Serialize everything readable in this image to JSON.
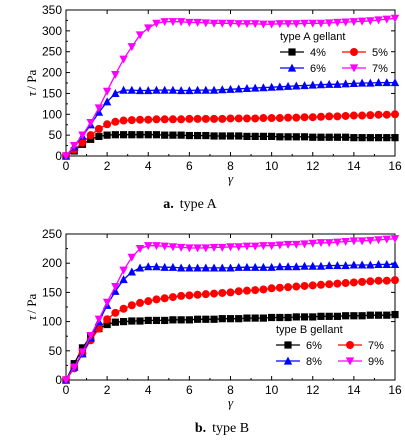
{
  "chart_data": [
    {
      "type": "line",
      "caption_letter": "a.",
      "caption_text": "type A",
      "ylabel_symbol": "τ",
      "ylabel_unit": "/ Pa",
      "xlabel": "γ",
      "xlim": [
        0,
        16
      ],
      "ylim": [
        0,
        350
      ],
      "xticks": [
        0,
        2,
        4,
        6,
        8,
        10,
        12,
        14,
        16
      ],
      "yticks": [
        0,
        50,
        100,
        150,
        200,
        250,
        300,
        350
      ],
      "legend_title": "type A gellant",
      "legend_position": "top-right",
      "x": [
        0,
        0.4,
        0.8,
        1.2,
        1.6,
        2.0,
        2.4,
        2.8,
        3.2,
        3.6,
        4.0,
        4.4,
        4.8,
        5.2,
        5.6,
        6.0,
        6.4,
        6.8,
        7.2,
        7.6,
        8.0,
        8.4,
        8.8,
        9.2,
        9.6,
        10.0,
        10.4,
        10.8,
        11.2,
        11.6,
        12.0,
        12.4,
        12.8,
        13.2,
        13.6,
        14.0,
        14.4,
        14.8,
        15.2,
        15.6,
        16.0
      ],
      "series": [
        {
          "name": "4%",
          "color": "#000000",
          "marker": "square",
          "values": [
            0,
            12,
            28,
            40,
            47,
            50,
            51,
            51,
            51,
            51,
            51,
            51,
            50,
            50,
            50,
            49,
            49,
            49,
            48,
            48,
            48,
            48,
            47,
            47,
            47,
            47,
            46,
            46,
            46,
            46,
            45,
            45,
            45,
            45,
            45,
            44,
            44,
            44,
            44,
            44,
            44
          ]
        },
        {
          "name": "5%",
          "color": "#ff0000",
          "marker": "circle",
          "values": [
            0,
            15,
            32,
            50,
            65,
            76,
            82,
            85,
            86,
            87,
            87,
            88,
            88,
            88,
            88,
            89,
            89,
            89,
            89,
            89,
            90,
            90,
            90,
            90,
            91,
            91,
            91,
            92,
            92,
            93,
            93,
            94,
            95,
            95,
            96,
            97,
            97,
            98,
            99,
            99,
            100
          ]
        },
        {
          "name": "6%",
          "color": "#0000ff",
          "marker": "triangle-up",
          "values": [
            0,
            22,
            48,
            75,
            105,
            130,
            150,
            158,
            158,
            157,
            157,
            158,
            158,
            158,
            157,
            157,
            158,
            158,
            158,
            159,
            160,
            161,
            162,
            163,
            164,
            165,
            166,
            167,
            168,
            169,
            170,
            171,
            172,
            172,
            173,
            174,
            175,
            175,
            176,
            176,
            176
          ]
        },
        {
          "name": "7%",
          "color": "#ff00ff",
          "marker": "triangle-down",
          "values": [
            0,
            25,
            50,
            80,
            115,
            155,
            195,
            232,
            262,
            290,
            307,
            318,
            322,
            322,
            322,
            320,
            320,
            319,
            318,
            318,
            318,
            317,
            317,
            317,
            316,
            316,
            317,
            317,
            317,
            318,
            318,
            318,
            319,
            320,
            321,
            322,
            323,
            324,
            326,
            328,
            330
          ]
        }
      ]
    },
    {
      "type": "line",
      "caption_letter": "b.",
      "caption_text": "type B",
      "ylabel_symbol": "τ",
      "ylabel_unit": "/ Pa",
      "xlabel": "γ",
      "xlim": [
        0,
        16
      ],
      "ylim": [
        0,
        250
      ],
      "xticks": [
        0,
        2,
        4,
        6,
        8,
        10,
        12,
        14,
        16
      ],
      "yticks": [
        0,
        50,
        100,
        150,
        200,
        250
      ],
      "legend_title": "type B gellant",
      "legend_position": "bottom-right",
      "x": [
        0,
        0.4,
        0.8,
        1.2,
        1.6,
        2.0,
        2.4,
        2.8,
        3.2,
        3.6,
        4.0,
        4.4,
        4.8,
        5.2,
        5.6,
        6.0,
        6.4,
        6.8,
        7.2,
        7.6,
        8.0,
        8.4,
        8.8,
        9.2,
        9.6,
        10.0,
        10.4,
        10.8,
        11.2,
        11.6,
        12.0,
        12.4,
        12.8,
        13.2,
        13.6,
        14.0,
        14.4,
        14.8,
        15.2,
        15.6,
        16.0
      ],
      "series": [
        {
          "name": "6%",
          "color": "#000000",
          "marker": "square",
          "values": [
            0,
            28,
            55,
            75,
            88,
            95,
            99,
            100,
            101,
            101,
            102,
            102,
            102,
            103,
            103,
            103,
            104,
            104,
            104,
            105,
            105,
            105,
            106,
            106,
            106,
            107,
            107,
            107,
            108,
            108,
            108,
            109,
            109,
            109,
            110,
            110,
            110,
            111,
            111,
            111,
            112
          ]
        },
        {
          "name": "7%",
          "color": "#ff0000",
          "marker": "circle",
          "values": [
            0,
            20,
            45,
            68,
            88,
            104,
            115,
            122,
            128,
            132,
            135,
            138,
            140,
            142,
            144,
            145,
            146,
            147,
            148,
            149,
            150,
            152,
            153,
            154,
            155,
            157,
            158,
            159,
            160,
            161,
            162,
            163,
            164,
            165,
            166,
            167,
            168,
            169,
            170,
            170,
            171
          ]
        },
        {
          "name": "8%",
          "color": "#0000ff",
          "marker": "triangle-up",
          "values": [
            0,
            22,
            45,
            72,
            100,
            128,
            152,
            172,
            185,
            192,
            194,
            194,
            193,
            193,
            192,
            192,
            192,
            192,
            192,
            192,
            192,
            193,
            193,
            193,
            193,
            193,
            194,
            194,
            194,
            195,
            195,
            195,
            196,
            196,
            196,
            197,
            197,
            197,
            198,
            198,
            198
          ]
        },
        {
          "name": "9%",
          "color": "#ff00ff",
          "marker": "triangle-down",
          "values": [
            0,
            22,
            48,
            76,
            104,
            133,
            160,
            188,
            210,
            225,
            230,
            230,
            229,
            228,
            227,
            226,
            226,
            226,
            227,
            227,
            228,
            228,
            229,
            229,
            230,
            230,
            231,
            232,
            232,
            233,
            234,
            235,
            235,
            236,
            237,
            238,
            238,
            239,
            240,
            241,
            242
          ]
        }
      ]
    }
  ]
}
